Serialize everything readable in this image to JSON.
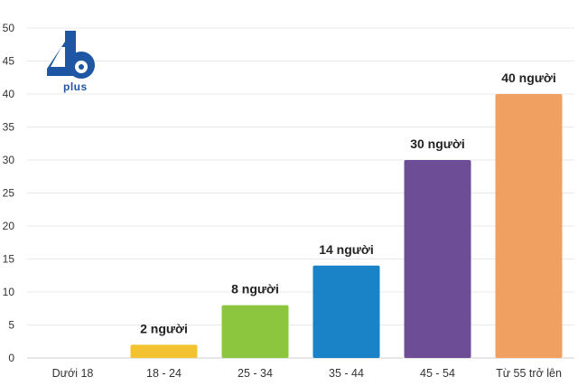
{
  "chart_data": {
    "type": "bar",
    "categories": [
      "Dưới 18",
      "18 - 24",
      "25 - 34",
      "35 - 44",
      "45 - 54",
      "Từ 55 trở lên"
    ],
    "values": [
      0,
      2,
      8,
      14,
      30,
      40
    ],
    "data_labels": [
      "",
      "2 người",
      "8 người",
      "14 người",
      "30 người",
      "40 người"
    ],
    "colors": [
      "#f2c230",
      "#f2c230",
      "#8cc63f",
      "#1a82c6",
      "#6d4e96",
      "#f0a060"
    ],
    "ylim": [
      0,
      50
    ],
    "yticks": [
      "0",
      "5",
      "10",
      "15",
      "20",
      "25",
      "30",
      "35",
      "40",
      "45",
      "50"
    ],
    "grid": true,
    "title": "",
    "xlabel": "",
    "ylabel": ""
  },
  "logo": {
    "number_text": "46",
    "brand_text": "plus",
    "color": "#1f56a3"
  }
}
